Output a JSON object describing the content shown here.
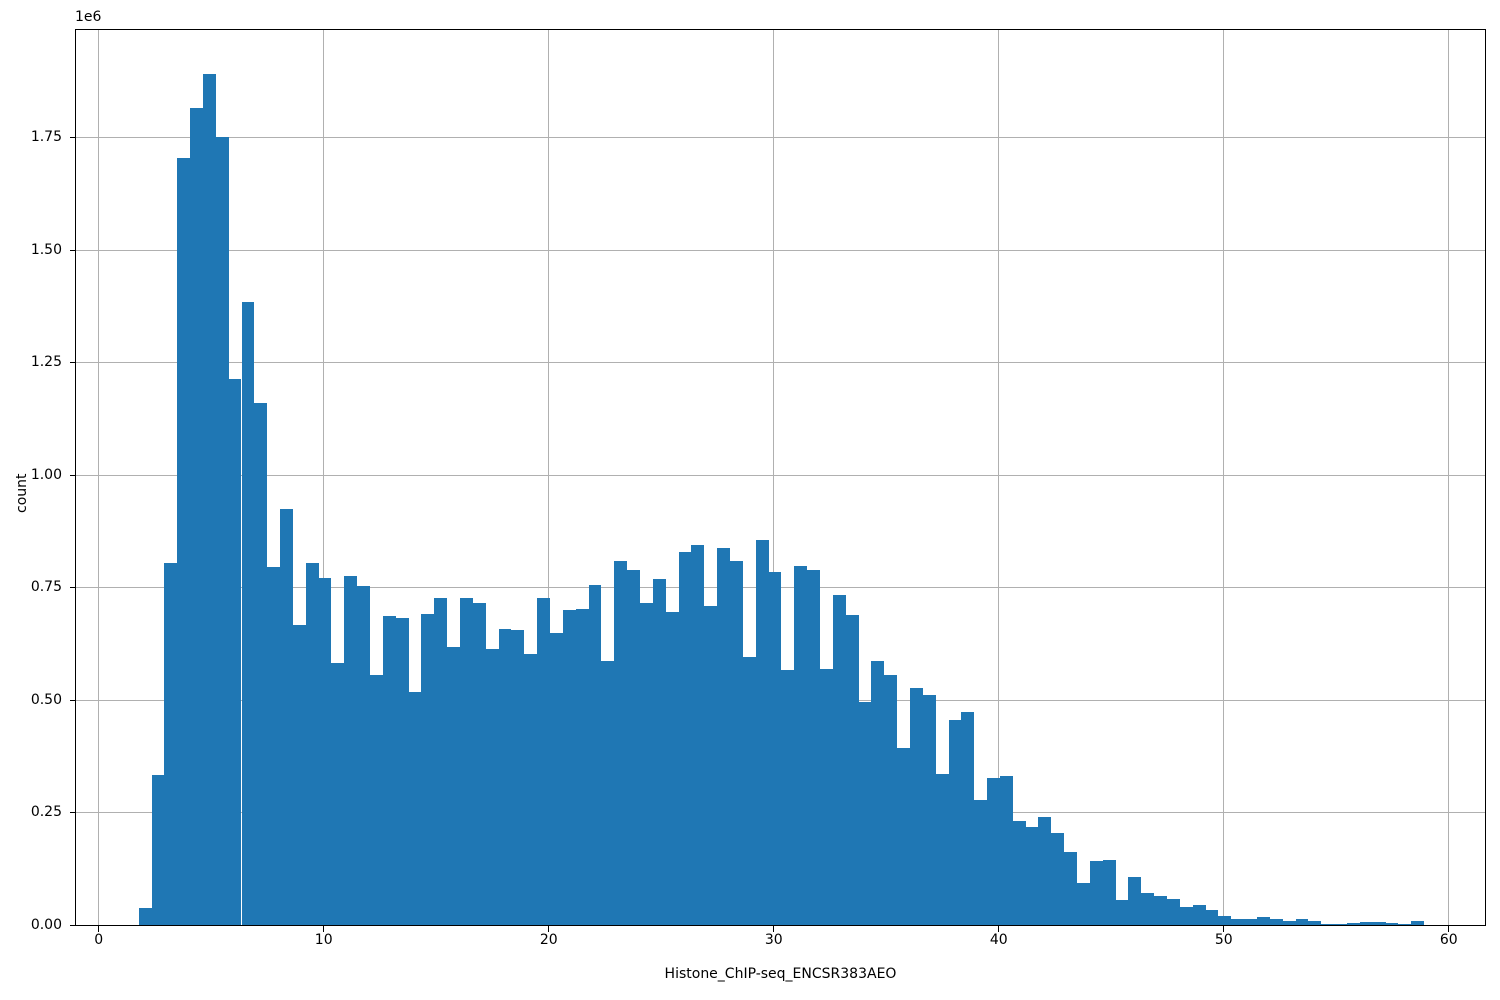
{
  "figure": {
    "background": "#ffffff",
    "bar_color": "#1f77b4",
    "grid_color": "#b0b0b0",
    "spine_color": "#000000",
    "text_color": "#000000"
  },
  "chart_data": {
    "type": "bar",
    "subtype": "histogram",
    "title": "",
    "xlabel": "Histone_ChIP-seq_ENCSR383AEO",
    "ylabel": "count",
    "y_offset_text": "1e6",
    "grid": true,
    "legend": false,
    "x_ticks": [
      0,
      10,
      20,
      30,
      40,
      50,
      60
    ],
    "y_ticks": [
      0,
      0.25,
      0.5,
      0.75,
      1.0,
      1.25,
      1.5,
      1.75
    ],
    "y_tick_labels": [
      "0.00",
      "0.25",
      "0.50",
      "0.75",
      "1.00",
      "1.25",
      "1.50",
      "1.75"
    ],
    "xlim": [
      -1.01,
      61.61
    ],
    "ylim": [
      0,
      1.99
    ],
    "y_units": "millions (1e6)",
    "bin_start": 1.775,
    "bin_width": 0.5713,
    "counts_millions": [
      0.038,
      0.334,
      0.806,
      1.705,
      1.817,
      1.893,
      1.753,
      1.213,
      1.386,
      1.16,
      0.796,
      0.926,
      0.666,
      0.805,
      0.772,
      0.583,
      0.776,
      0.753,
      0.555,
      0.686,
      0.683,
      0.519,
      0.692,
      0.726,
      0.618,
      0.728,
      0.717,
      0.613,
      0.659,
      0.657,
      0.603,
      0.726,
      0.649,
      0.701,
      0.703,
      0.755,
      0.586,
      0.81,
      0.789,
      0.716,
      0.77,
      0.697,
      0.83,
      0.846,
      0.709,
      0.838,
      0.809,
      0.597,
      0.857,
      0.785,
      0.566,
      0.798,
      0.789,
      0.57,
      0.733,
      0.689,
      0.496,
      0.588,
      0.557,
      0.393,
      0.527,
      0.512,
      0.335,
      0.455,
      0.473,
      0.279,
      0.327,
      0.332,
      0.232,
      0.219,
      0.24,
      0.204,
      0.163,
      0.094,
      0.142,
      0.144,
      0.055,
      0.107,
      0.072,
      0.065,
      0.057,
      0.04,
      0.044,
      0.033,
      0.02,
      0.013,
      0.014,
      0.018,
      0.013,
      0.01,
      0.013,
      0.008,
      0.003,
      0.002,
      0.005,
      0.006,
      0.006,
      0.005,
      0.002,
      0.008
    ]
  }
}
